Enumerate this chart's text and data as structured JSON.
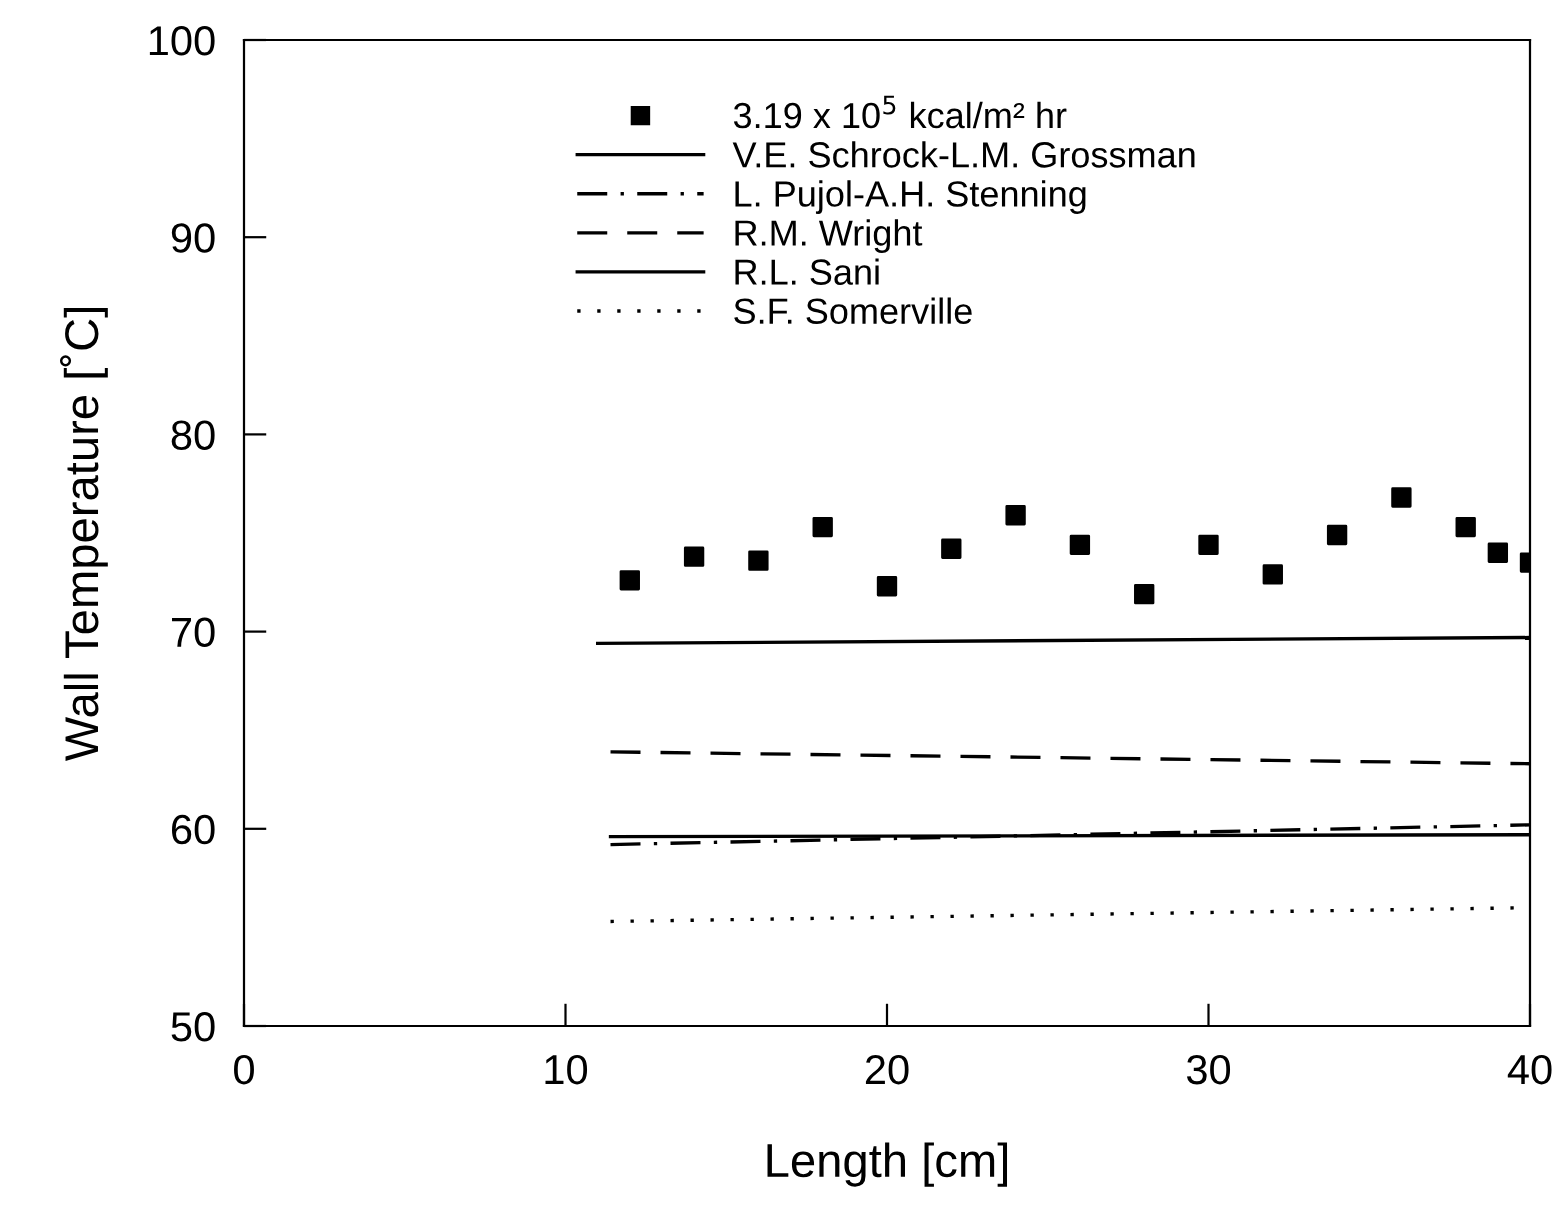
{
  "chart_data": {
    "type": "line",
    "xlabel": "Length [cm]",
    "ylabel": "Wall Temperature [˚C]",
    "xlim": [
      0,
      40
    ],
    "ylim": [
      50,
      100
    ],
    "xticks": [
      0,
      10,
      20,
      30,
      40
    ],
    "yticks": [
      50,
      60,
      70,
      80,
      90,
      100
    ],
    "grid": false,
    "legend": "top",
    "series": [
      {
        "name": "3.19 x 10$^{5}$ kcal/m² hr",
        "type": "scatter",
        "marker": "square",
        "color": "#000000",
        "x": [
          12,
          14,
          16,
          18,
          20,
          22,
          24,
          26,
          28,
          30,
          32,
          34,
          36,
          38,
          39,
          40
        ],
        "values": [
          72.6,
          73.8,
          73.6,
          75.3,
          72.3,
          74.2,
          75.9,
          74.4,
          71.9,
          74.4,
          72.9,
          74.9,
          76.8,
          75.3,
          74.0,
          73.5
        ]
      },
      {
        "name": "V.E. Schrock-L.M. Grossman",
        "line_style": "solid",
        "color": "#000000",
        "x": [
          11,
          40
        ],
        "values": [
          69.4,
          69.7
        ]
      },
      {
        "name": "L. Pujol-A.H. Stenning",
        "line_style": "dashdot",
        "color": "#000000",
        "x": [
          11.4,
          40
        ],
        "values": [
          59.2,
          60.2
        ]
      },
      {
        "name": "R.M. Wright",
        "line_style": "dashed",
        "color": "#000000",
        "x": [
          11.4,
          40
        ],
        "values": [
          63.9,
          63.3
        ]
      },
      {
        "name": "R.L. Sani",
        "line_style": "solid",
        "color": "#000000",
        "x": [
          11.4,
          40
        ],
        "values": [
          59.6,
          59.7
        ]
      },
      {
        "name": "S.F. Somerville",
        "line_style": "dotted",
        "color": "#000000",
        "x": [
          11.4,
          40
        ],
        "values": [
          55.3,
          56.0
        ]
      }
    ]
  }
}
